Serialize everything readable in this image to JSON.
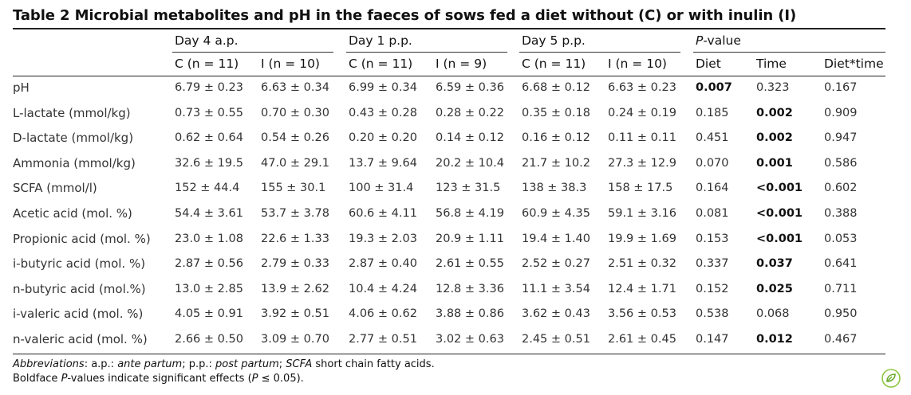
{
  "title": "Table 2 Microbial metabolites and pH in the faeces of sows fed a diet without (C) or with inulin (I)",
  "groups": [
    {
      "label": "Day 4 a.p."
    },
    {
      "label": "Day 1 p.p."
    },
    {
      "label": "Day 5 p.p."
    },
    {
      "label_italic": "P",
      "label_rest": "-value"
    }
  ],
  "columns": [
    "C (n = 11)",
    "I (n = 10)",
    "C (n = 11)",
    "I (n = 9)",
    "C (n = 11)",
    "I (n = 10)",
    "Diet",
    "Time",
    "Diet*time"
  ],
  "rows": [
    {
      "label": "pH",
      "cells": [
        {
          "v": "6.79 ± 0.23"
        },
        {
          "v": "6.63 ± 0.34"
        },
        {
          "v": "6.99 ± 0.34"
        },
        {
          "v": "6.59 ± 0.36"
        },
        {
          "v": "6.68 ± 0.12"
        },
        {
          "v": "6.63 ± 0.23"
        },
        {
          "v": "0.007",
          "bold": true
        },
        {
          "v": "0.323"
        },
        {
          "v": "0.167"
        }
      ]
    },
    {
      "label": "L-lactate (mmol/kg)",
      "cells": [
        {
          "v": "0.73 ± 0.55"
        },
        {
          "v": "0.70 ± 0.30"
        },
        {
          "v": "0.43 ± 0.28"
        },
        {
          "v": "0.28 ± 0.22"
        },
        {
          "v": "0.35 ± 0.18"
        },
        {
          "v": "0.24 ± 0.19"
        },
        {
          "v": "0.185"
        },
        {
          "v": "0.002",
          "bold": true
        },
        {
          "v": "0.909"
        }
      ]
    },
    {
      "label": "D-lactate (mmol/kg)",
      "cells": [
        {
          "v": "0.62 ± 0.64"
        },
        {
          "v": "0.54 ± 0.26"
        },
        {
          "v": "0.20 ± 0.20"
        },
        {
          "v": "0.14 ± 0.12"
        },
        {
          "v": "0.16 ± 0.12"
        },
        {
          "v": "0.11 ± 0.11"
        },
        {
          "v": "0.451"
        },
        {
          "v": "0.002",
          "bold": true
        },
        {
          "v": "0.947"
        }
      ]
    },
    {
      "label": "Ammonia (mmol/kg)",
      "cells": [
        {
          "v": "32.6 ± 19.5"
        },
        {
          "v": "47.0 ± 29.1"
        },
        {
          "v": "13.7 ± 9.64"
        },
        {
          "v": "20.2 ± 10.4"
        },
        {
          "v": "21.7 ± 10.2"
        },
        {
          "v": "27.3 ± 12.9"
        },
        {
          "v": "0.070"
        },
        {
          "v": "0.001",
          "bold": true
        },
        {
          "v": "0.586"
        }
      ]
    },
    {
      "label": "SCFA (mmol/l)",
      "cells": [
        {
          "v": "152 ± 44.4"
        },
        {
          "v": "155 ± 30.1"
        },
        {
          "v": "100 ± 31.4"
        },
        {
          "v": "123 ± 31.5"
        },
        {
          "v": "138 ± 38.3"
        },
        {
          "v": "158 ± 17.5"
        },
        {
          "v": "0.164"
        },
        {
          "v": "<0.001",
          "bold": true
        },
        {
          "v": "0.602"
        }
      ]
    },
    {
      "label": "Acetic acid (mol. %)",
      "cells": [
        {
          "v": "54.4 ± 3.61"
        },
        {
          "v": "53.7 ± 3.78"
        },
        {
          "v": "60.6 ± 4.11"
        },
        {
          "v": "56.8 ± 4.19"
        },
        {
          "v": "60.9 ± 4.35"
        },
        {
          "v": "59.1 ± 3.16"
        },
        {
          "v": "0.081"
        },
        {
          "v": "<0.001",
          "bold": true
        },
        {
          "v": "0.388"
        }
      ]
    },
    {
      "label": "Propionic acid (mol. %)",
      "cells": [
        {
          "v": "23.0 ± 1.08"
        },
        {
          "v": "22.6 ± 1.33"
        },
        {
          "v": "19.3 ± 2.03"
        },
        {
          "v": "20.9 ± 1.11"
        },
        {
          "v": "19.4 ± 1.40"
        },
        {
          "v": "19.9 ± 1.69"
        },
        {
          "v": "0.153"
        },
        {
          "v": "<0.001",
          "bold": true
        },
        {
          "v": "0.053"
        }
      ]
    },
    {
      "label": "i-butyric acid (mol. %)",
      "cells": [
        {
          "v": "2.87 ± 0.56"
        },
        {
          "v": "2.79 ± 0.33"
        },
        {
          "v": "2.87 ± 0.40"
        },
        {
          "v": "2.61 ± 0.55"
        },
        {
          "v": "2.52 ± 0.27"
        },
        {
          "v": "2.51 ± 0.32"
        },
        {
          "v": "0.337"
        },
        {
          "v": "0.037",
          "bold": true
        },
        {
          "v": "0.641"
        }
      ]
    },
    {
      "label": "n-butyric acid (mol.%)",
      "cells": [
        {
          "v": "13.0 ± 2.85"
        },
        {
          "v": "13.9 ± 2.62"
        },
        {
          "v": "10.4 ± 4.24"
        },
        {
          "v": "12.8 ± 3.36"
        },
        {
          "v": "11.1 ± 3.54"
        },
        {
          "v": "12.4 ± 1.71"
        },
        {
          "v": "0.152"
        },
        {
          "v": "0.025",
          "bold": true
        },
        {
          "v": "0.711"
        }
      ]
    },
    {
      "label": "i-valeric acid (mol. %)",
      "cells": [
        {
          "v": "4.05 ± 0.91"
        },
        {
          "v": "3.92 ± 0.51"
        },
        {
          "v": "4.06 ± 0.62"
        },
        {
          "v": "3.88 ± 0.86"
        },
        {
          "v": "3.62 ± 0.43"
        },
        {
          "v": "3.56 ± 0.53"
        },
        {
          "v": "0.538"
        },
        {
          "v": "0.068"
        },
        {
          "v": "0.950"
        }
      ]
    },
    {
      "label": "n-valeric acid (mol. %)",
      "cells": [
        {
          "v": "2.66 ± 0.50"
        },
        {
          "v": "3.09 ± 0.70"
        },
        {
          "v": "2.77 ± 0.51"
        },
        {
          "v": "3.02 ± 0.63"
        },
        {
          "v": "2.45 ± 0.51"
        },
        {
          "v": "2.61 ± 0.45"
        },
        {
          "v": "0.147"
        },
        {
          "v": "0.012",
          "bold": true
        },
        {
          "v": "0.467"
        }
      ]
    }
  ],
  "footnote1": {
    "lead": "Abbreviations",
    "text1": ": a.p.: ",
    "ap": "ante partum",
    "text2": "; p.p.: ",
    "pp": "post partum",
    "text3": "; ",
    "scfa": "SCFA",
    "text4": " short chain fatty acids."
  },
  "footnote2": {
    "text1": "Boldface ",
    "p1": "P",
    "text2": "-values indicate significant effects (",
    "p2": "P",
    "text3": " ≤ 0.05)."
  },
  "logo_icon": "publisher-leaf-icon"
}
